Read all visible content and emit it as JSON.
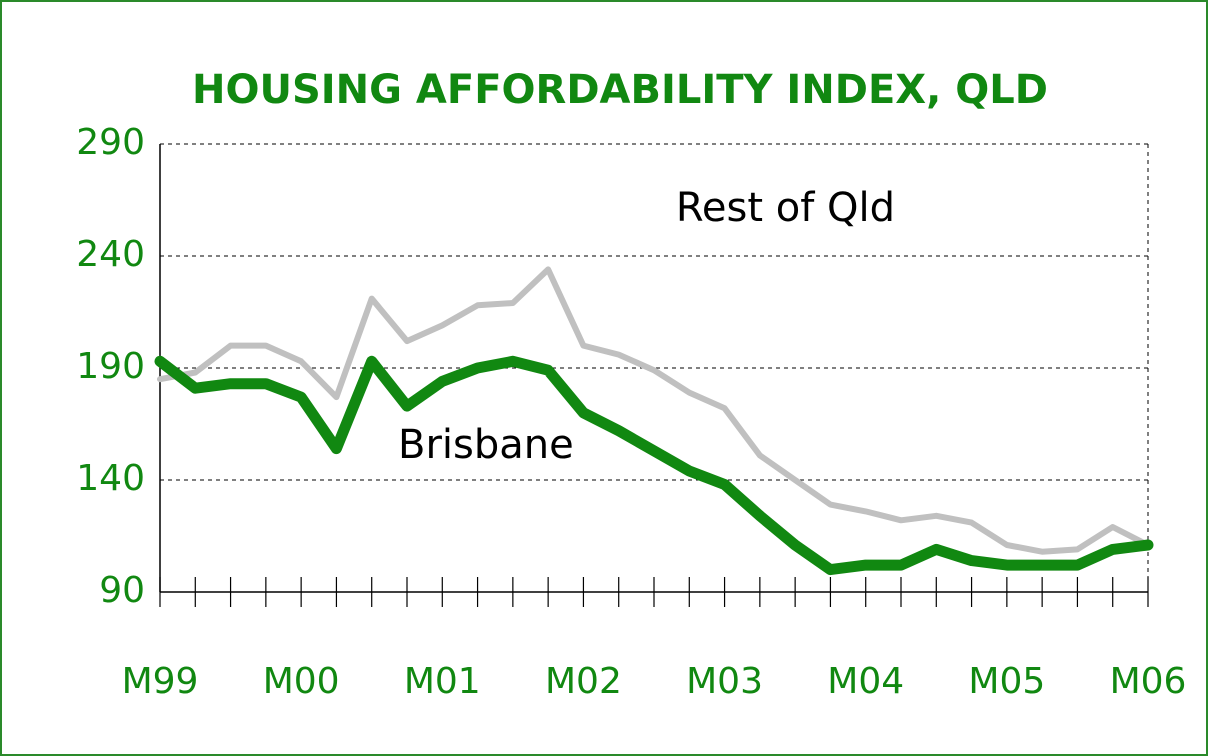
{
  "chart_data": {
    "type": "line",
    "title": "HOUSING AFFORDABILITY INDEX, QLD",
    "categories": [
      "M99",
      null,
      null,
      null,
      "M00",
      null,
      null,
      null,
      "M01",
      null,
      null,
      null,
      "M02",
      null,
      null,
      null,
      "M03",
      null,
      null,
      null,
      "M04",
      null,
      null,
      null,
      "M05",
      null,
      null,
      null,
      "M06"
    ],
    "series": [
      {
        "name": "Brisbane",
        "color": "#118811",
        "values": [
          193,
          181,
          183,
          183,
          177,
          154,
          193,
          173,
          184,
          190,
          193,
          189,
          170,
          162,
          153,
          144,
          138,
          124,
          111,
          100,
          102,
          102,
          109,
          104,
          102,
          102,
          102,
          109,
          111
        ]
      },
      {
        "name": "Rest of Qld",
        "color": "#c0c0c0",
        "values": [
          185,
          188,
          200,
          200,
          193,
          177,
          221,
          202,
          209,
          218,
          219,
          234,
          200,
          196,
          189,
          179,
          172,
          151,
          140,
          129,
          126,
          122,
          124,
          121,
          111,
          108,
          109,
          119,
          111
        ]
      }
    ],
    "ylim": [
      90,
      290
    ],
    "yticks": [
      90,
      140,
      190,
      240,
      290
    ],
    "grid": true
  }
}
